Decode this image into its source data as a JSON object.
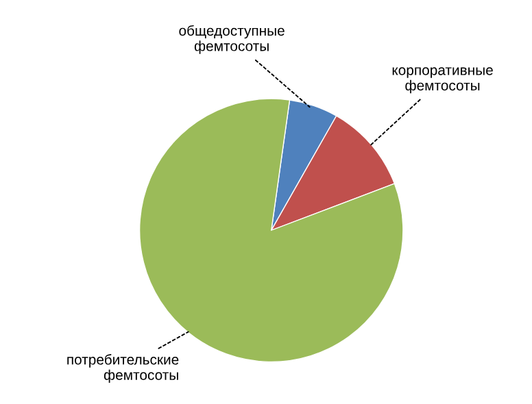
{
  "chart_data": {
    "type": "pie",
    "categories": [
      "общедоступные фемтосоты",
      "корпоративные фемтосоты",
      "потребительские фемтосоты"
    ],
    "values": [
      6,
      11,
      83
    ],
    "colors": [
      "#4f81bd",
      "#c0504d",
      "#9bbb59"
    ],
    "legend": false
  }
}
